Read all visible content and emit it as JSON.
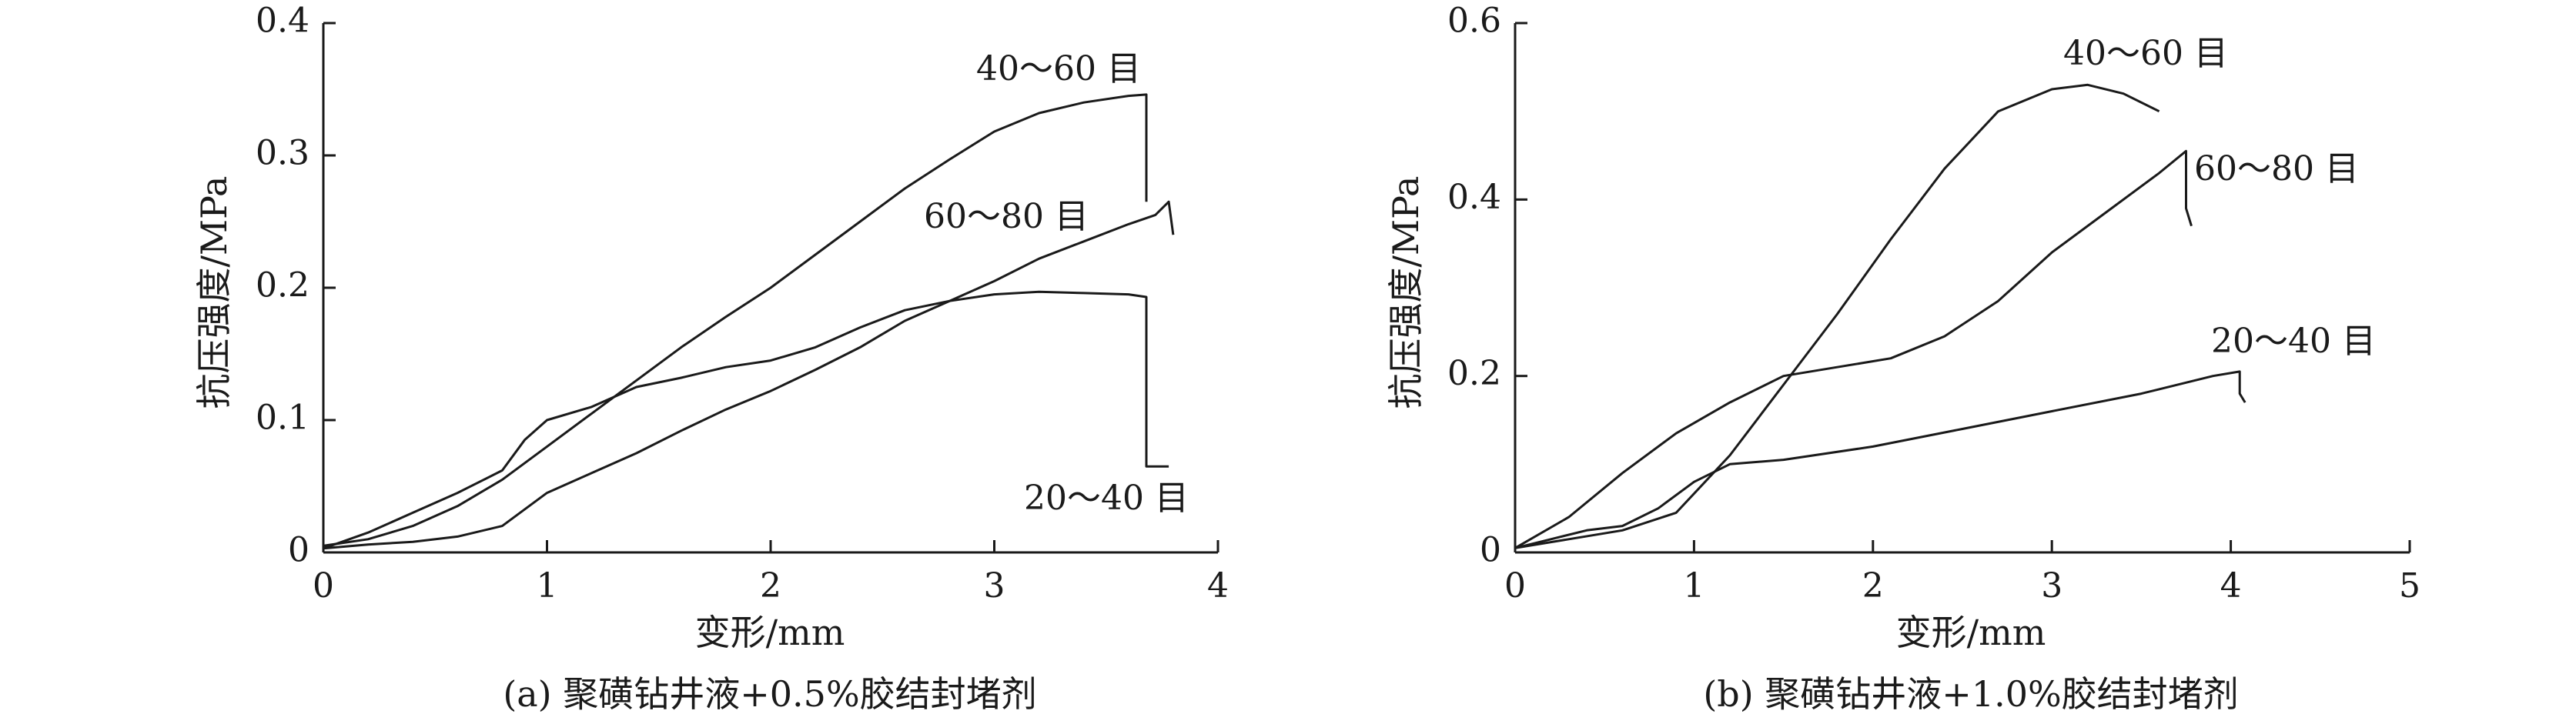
{
  "chart_data": [
    {
      "type": "line",
      "title": "(a) 聚磺钻井液+0.5%胶结封堵剂",
      "xlabel": "变形/mm",
      "ylabel": "抗压强度/MPa",
      "xlim": [
        0,
        4
      ],
      "ylim": [
        0,
        0.4
      ],
      "xticks": [
        "0",
        "1",
        "2",
        "3",
        "4"
      ],
      "yticks": [
        "0",
        "0.1",
        "0.2",
        "0.3",
        "0.4"
      ],
      "grid": false,
      "series": [
        {
          "name": "40～60 目",
          "x": [
            0,
            0.2,
            0.4,
            0.6,
            0.8,
            1.0,
            1.2,
            1.4,
            1.6,
            1.8,
            2.0,
            2.2,
            2.4,
            2.6,
            2.8,
            3.0,
            3.2,
            3.4,
            3.6,
            3.68,
            3.68
          ],
          "y": [
            0.005,
            0.01,
            0.02,
            0.035,
            0.055,
            0.08,
            0.105,
            0.13,
            0.155,
            0.178,
            0.2,
            0.225,
            0.25,
            0.275,
            0.297,
            0.318,
            0.332,
            0.34,
            0.345,
            0.346,
            0.265
          ]
        },
        {
          "name": "60～80 目",
          "x": [
            0,
            0.2,
            0.4,
            0.6,
            0.8,
            1.0,
            1.2,
            1.4,
            1.6,
            1.8,
            2.0,
            2.2,
            2.4,
            2.6,
            2.8,
            3.0,
            3.2,
            3.4,
            3.6,
            3.72,
            3.78,
            3.8
          ],
          "y": [
            0.003,
            0.006,
            0.008,
            0.012,
            0.02,
            0.045,
            0.06,
            0.075,
            0.092,
            0.108,
            0.122,
            0.138,
            0.155,
            0.175,
            0.19,
            0.205,
            0.222,
            0.235,
            0.248,
            0.255,
            0.265,
            0.24
          ]
        },
        {
          "name": "20～40 目",
          "x": [
            0,
            0.2,
            0.4,
            0.6,
            0.8,
            0.9,
            1.0,
            1.2,
            1.4,
            1.6,
            1.8,
            2.0,
            2.2,
            2.4,
            2.6,
            2.8,
            3.0,
            3.2,
            3.4,
            3.6,
            3.68,
            3.68,
            3.78
          ],
          "y": [
            0.003,
            0.015,
            0.03,
            0.045,
            0.062,
            0.085,
            0.1,
            0.11,
            0.125,
            0.132,
            0.14,
            0.145,
            0.155,
            0.17,
            0.183,
            0.19,
            0.195,
            0.197,
            0.196,
            0.195,
            0.193,
            0.065,
            0.065
          ]
        }
      ],
      "labels": {
        "s40": "40～60 目",
        "s60": "60～80 目",
        "s20": "20～40 目"
      }
    },
    {
      "type": "line",
      "title": "(b) 聚磺钻井液+1.0%胶结封堵剂",
      "xlabel": "变形/mm",
      "ylabel": "抗压强度/MPa",
      "xlim": [
        0,
        5
      ],
      "ylim": [
        0,
        0.6
      ],
      "xticks": [
        "0",
        "1",
        "2",
        "3",
        "4",
        "5"
      ],
      "yticks": [
        "0",
        "0.2",
        "0.4",
        "0.6"
      ],
      "grid": false,
      "series": [
        {
          "name": "40～60 目",
          "x": [
            0,
            0.3,
            0.6,
            0.9,
            1.2,
            1.5,
            1.8,
            2.1,
            2.4,
            2.7,
            3.0,
            3.2,
            3.4,
            3.6
          ],
          "y": [
            0.005,
            0.015,
            0.025,
            0.045,
            0.11,
            0.19,
            0.27,
            0.355,
            0.435,
            0.5,
            0.525,
            0.53,
            0.52,
            0.5
          ]
        },
        {
          "name": "60～80 目",
          "x": [
            0,
            0.3,
            0.6,
            0.9,
            1.2,
            1.5,
            1.8,
            2.1,
            2.4,
            2.7,
            3.0,
            3.3,
            3.6,
            3.75,
            3.75,
            3.78
          ],
          "y": [
            0.005,
            0.04,
            0.09,
            0.135,
            0.17,
            0.2,
            0.21,
            0.22,
            0.245,
            0.285,
            0.34,
            0.385,
            0.43,
            0.455,
            0.39,
            0.37
          ]
        },
        {
          "name": "20～40 目",
          "x": [
            0,
            0.2,
            0.4,
            0.6,
            0.8,
            1.0,
            1.2,
            1.5,
            2.0,
            2.5,
            3.0,
            3.5,
            3.9,
            4.05,
            4.05,
            4.08
          ],
          "y": [
            0.005,
            0.015,
            0.025,
            0.03,
            0.05,
            0.08,
            0.1,
            0.105,
            0.12,
            0.14,
            0.16,
            0.18,
            0.2,
            0.205,
            0.18,
            0.17
          ]
        }
      ],
      "labels": {
        "s40": "40～60 目",
        "s60": "60～80 目",
        "s20": "20～40 目"
      }
    }
  ]
}
